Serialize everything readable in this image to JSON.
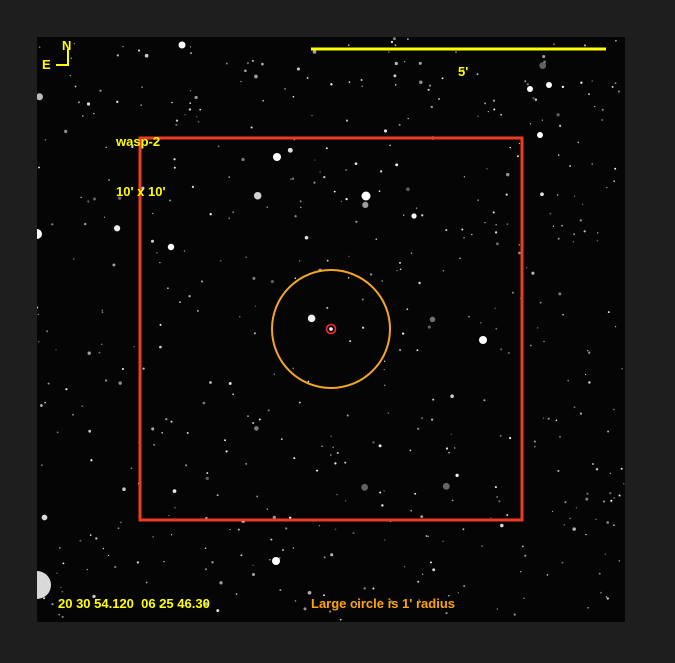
{
  "image": {
    "target_name": "wasp-2",
    "field_size": "10' x 10'",
    "scale_bar_label": "5'",
    "compass": {
      "north": "N",
      "east": "E"
    },
    "coordinates": "20 30 54.120  06 25 46.30",
    "circle_note": "Large circle is 1' radius"
  },
  "colors": {
    "annotation_yellow": "#ffff00",
    "finder_box_red": "#ee3a24",
    "radius_circle_orange": "#f5a623",
    "target_marker_red": "#ff2a2a",
    "background": "#1e1e1e",
    "sky": "#050505"
  }
}
